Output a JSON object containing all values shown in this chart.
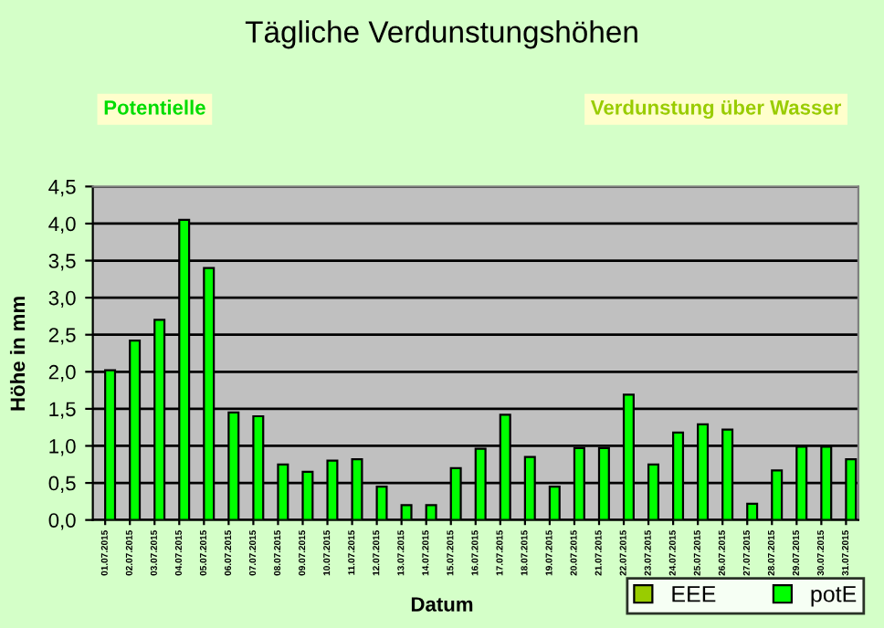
{
  "chart_data": {
    "type": "bar",
    "title": "Tägliche Verdunstungshöhen",
    "xlabel": "Datum",
    "ylabel": "Höhe in mm",
    "annotations": [
      "Potentielle",
      "Verdunstung über Wasser"
    ],
    "categories": [
      "01.07.2015",
      "02.07.2015",
      "03.07.2015",
      "04.07.2015",
      "05.07.2015",
      "06.07.2015",
      "07.07.2015",
      "08.07.2015",
      "09.07.2015",
      "10.07.2015",
      "11.07.2015",
      "12.07.2015",
      "13.07.2015",
      "14.07.2015",
      "15.07.2015",
      "16.07.2015",
      "17.07.2015",
      "18.07.2015",
      "19.07.2015",
      "20.07.2015",
      "21.07.2015",
      "22.07.2015",
      "23.07.2015",
      "24.07.2015",
      "25.07.2015",
      "26.07.2015",
      "27.07.2015",
      "28.07.2015",
      "29.07.2015",
      "30.07.2015",
      "31.07.2015"
    ],
    "series": [
      {
        "name": "EEE",
        "color": "#99cc00",
        "values": [
          null,
          null,
          null,
          null,
          null,
          null,
          null,
          null,
          null,
          null,
          null,
          null,
          null,
          null,
          null,
          null,
          null,
          null,
          null,
          null,
          null,
          null,
          null,
          null,
          null,
          null,
          null,
          null,
          null,
          null,
          null
        ]
      },
      {
        "name": "potE",
        "color": "#00ff00",
        "values": [
          2.02,
          2.42,
          2.7,
          4.05,
          3.4,
          1.45,
          1.4,
          0.75,
          0.65,
          0.8,
          0.82,
          0.45,
          0.2,
          0.2,
          0.7,
          0.96,
          1.42,
          0.85,
          0.45,
          0.97,
          0.97,
          1.69,
          0.75,
          1.18,
          1.29,
          1.22,
          0.22,
          0.67,
          0.99,
          0.99,
          0.82
        ]
      }
    ],
    "ylim": [
      0,
      4.5
    ],
    "yticks": [
      {
        "value": 0,
        "label": "0,0"
      },
      {
        "value": 0.5,
        "label": "0,5"
      },
      {
        "value": 1,
        "label": "1,0"
      },
      {
        "value": 1.5,
        "label": "1,5"
      },
      {
        "value": 2,
        "label": "2,0"
      },
      {
        "value": 2.5,
        "label": "2,5"
      },
      {
        "value": 3,
        "label": "3,0"
      },
      {
        "value": 3.5,
        "label": "3,5"
      },
      {
        "value": 4,
        "label": "4,0"
      },
      {
        "value": 4.5,
        "label": "4,5"
      }
    ],
    "grid": "y",
    "legend": "bottom right"
  }
}
